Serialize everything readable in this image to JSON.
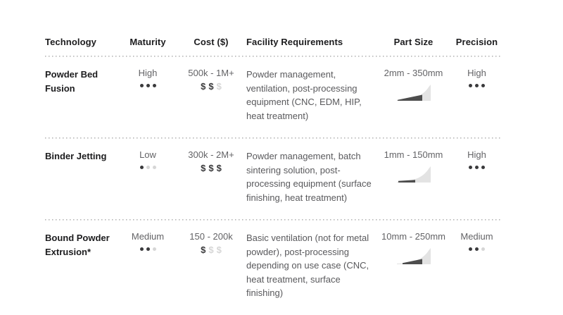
{
  "colors": {
    "text_primary": "#1c1c1e",
    "text_secondary": "#636366",
    "dot_filled": "#3a3a3c",
    "dot_empty": "#d6d6d6",
    "divider": "#b4b4b4",
    "icon_light": "#e3e3e3",
    "icon_dark": "#4d4d4d"
  },
  "rating_scale_max": 3,
  "table": {
    "headers": [
      "Technology",
      "Maturity",
      "Cost ($)",
      "Facility Requirements",
      "Part Size",
      "Precision"
    ],
    "rows": [
      {
        "technology": "Powder Bed Fusion",
        "maturity": {
          "label": "High",
          "level": 3
        },
        "cost": {
          "range": "500k - 1M+",
          "dollar_level": 2
        },
        "facility_requirements": "Powder management, ventilation, post-processing equipment (CNC, EDM, HIP, heat treatment)",
        "part_size": {
          "range": "2mm - 350mm"
        },
        "precision": {
          "label": "High",
          "level": 3
        }
      },
      {
        "technology": "Binder Jetting",
        "maturity": {
          "label": "Low",
          "level": 1
        },
        "cost": {
          "range": "300k - 2M+",
          "dollar_level": 3
        },
        "facility_requirements": "Powder management, batch sintering solution, post-processing equipment (surface finishing, heat treatment)",
        "part_size": {
          "range": "1mm - 150mm"
        },
        "precision": {
          "label": "High",
          "level": 3
        }
      },
      {
        "technology": "Bound Powder Extrusion*",
        "maturity": {
          "label": "Medium",
          "level": 2
        },
        "cost": {
          "range": "150 - 200k",
          "dollar_level": 1
        },
        "facility_requirements": "Basic ventilation (not for metal powder), post-processing depending on use case (CNC, heat treatment, surface finishing)",
        "part_size": {
          "range": "10mm - 250mm"
        },
        "precision": {
          "label": "Medium",
          "level": 2
        }
      }
    ]
  }
}
